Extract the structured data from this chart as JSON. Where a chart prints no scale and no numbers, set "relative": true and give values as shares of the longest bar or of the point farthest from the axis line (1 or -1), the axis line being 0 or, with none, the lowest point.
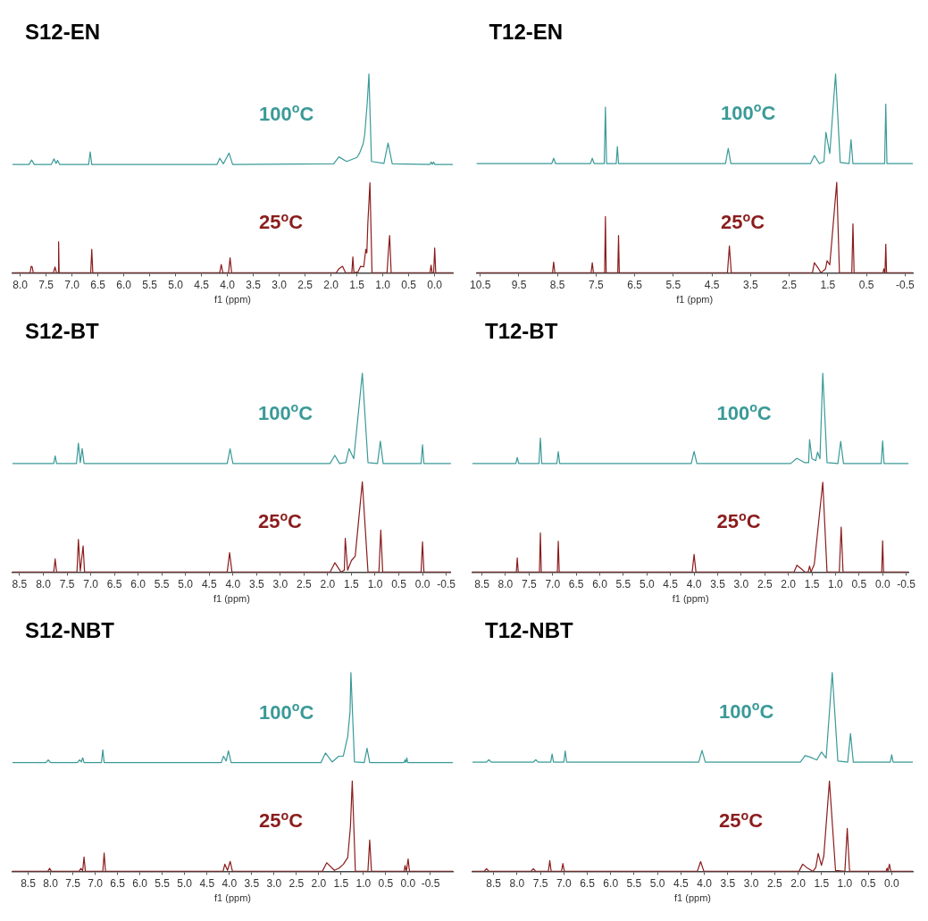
{
  "chart_data": [
    {
      "type": "line",
      "title": "S12-EN",
      "xlabel": "f1 (ppm)",
      "relative": true,
      "xlim": [
        8.15,
        -0.35
      ],
      "xticks": [
        {
          "value": 8,
          "label": "8.0"
        },
        7.5,
        {
          "value": 7,
          "label": "7.0"
        },
        6.5,
        {
          "value": 6,
          "label": "6.0"
        },
        5.5,
        {
          "value": 5,
          "label": "5.0"
        },
        4.5,
        {
          "value": 4,
          "label": "4.0"
        },
        3.5,
        {
          "value": 3,
          "label": "3.0"
        },
        2.5,
        {
          "value": 2,
          "label": "2.0"
        },
        1.5,
        {
          "value": 1,
          "label": "1.0"
        },
        0.5,
        {
          "value": 0,
          "label": "0.0"
        }
      ],
      "series": [
        {
          "name": "100$^{o}$C",
          "color": "#3a9a98",
          "x": [
            8.15,
            7.83,
            7.78,
            7.73,
            7.4,
            7.35,
            7.31,
            7.28,
            7.24,
            6.68,
            6.65,
            6.62,
            4.2,
            4.15,
            4.08,
            3.97,
            3.9,
            1.95,
            1.85,
            1.7,
            1.6,
            1.5,
            1.45,
            1.38,
            1.35,
            1.3,
            1.27,
            1.22,
            0.98,
            0.9,
            0.82,
            0.09,
            0.07,
            0.045,
            0.02,
            0.0,
            -0.35
          ],
          "values": [
            0.545,
            0.545,
            0.567,
            0.545,
            0.545,
            0.573,
            0.55,
            0.565,
            0.545,
            0.545,
            0.608,
            0.545,
            0.545,
            0.576,
            0.548,
            0.602,
            0.545,
            0.548,
            0.583,
            0.56,
            0.57,
            0.58,
            0.602,
            0.65,
            0.697,
            0.863,
            1,
            0.56,
            0.55,
            0.653,
            0.548,
            0.545,
            0.557,
            0.545,
            0.557,
            0.545,
            0.545
          ]
        },
        {
          "name": "25$^{o}$C",
          "color": "#8b1c1c",
          "x": [
            8.15,
            7.81,
            7.79,
            7.77,
            7.75,
            7.36,
            7.33,
            7.3,
            7.27,
            7.26,
            7.25,
            6.64,
            6.62,
            6.6,
            4.15,
            4.12,
            4.09,
            3.98,
            3.95,
            3.92,
            1.9,
            1.85,
            1.78,
            1.72,
            1.6,
            1.58,
            1.56,
            1.48,
            1.43,
            1.37,
            1.33,
            1.31,
            1.29,
            1.25,
            1.21,
            0.92,
            0.89,
            0.87,
            0.84,
            0.09,
            0.07,
            0.05,
            0.02,
            0.0,
            -0.02,
            -0.35
          ],
          "values": [
            0,
            0,
            0.033,
            0.03,
            0,
            0,
            0.029,
            0,
            0,
            0.156,
            0,
            0,
            0.118,
            0,
            0,
            0.042,
            0,
            0,
            0.076,
            0,
            0,
            0.02,
            0.033,
            0,
            0,
            0.08,
            0,
            0.005,
            0.033,
            0.03,
            0.118,
            0.1,
            0.252,
            0.453,
            0,
            0,
            0.122,
            0.188,
            0,
            0,
            0.038,
            0,
            0,
            0.125,
            0,
            0
          ]
        }
      ]
    },
    {
      "type": "line",
      "title": "T12-EN",
      "xlabel": "f1 (ppm)",
      "relative": true,
      "xlim": [
        10.6,
        -0.7
      ],
      "xticks": [
        10.5,
        9.5,
        8.5,
        7.5,
        6.5,
        5.5,
        4.5,
        3.5,
        2.5,
        1.5,
        0.5,
        -0.5
      ],
      "series": [
        {
          "name": "100$^{o}$C",
          "color": "#3a9a98",
          "x": [
            10.6,
            8.65,
            8.6,
            8.55,
            7.65,
            7.6,
            7.55,
            7.29,
            7.26,
            7.23,
            6.98,
            6.95,
            6.92,
            4.15,
            4.08,
            4.01,
            1.95,
            1.85,
            1.72,
            1.6,
            1.55,
            1.45,
            1.3,
            1.18,
            0.95,
            0.9,
            0.85,
            0.03,
            0.0,
            -0.03,
            -0.7
          ],
          "values": [
            0.549,
            0.549,
            0.576,
            0.549,
            0.549,
            0.576,
            0.549,
            0.549,
            0.834,
            0.549,
            0.549,
            0.635,
            0.549,
            0.549,
            0.626,
            0.549,
            0.549,
            0.59,
            0.549,
            0.56,
            0.707,
            0.6,
            1,
            0.555,
            0.549,
            0.67,
            0.549,
            0.549,
            0.848,
            0.549,
            0.549
          ]
        },
        {
          "name": "25$^{o}$C",
          "color": "#8b1c1c",
          "x": [
            10.6,
            8.63,
            8.6,
            8.57,
            7.63,
            7.6,
            7.57,
            7.28,
            7.26,
            7.24,
            6.94,
            6.92,
            6.9,
            4.1,
            4.05,
            4.0,
            1.9,
            1.85,
            1.75,
            1.68,
            1.56,
            1.52,
            1.45,
            1.27,
            1.2,
            0.88,
            0.85,
            0.82,
            0.07,
            0.05,
            0.02,
            0.0,
            -0.02,
            -0.7
          ],
          "values": [
            0,
            0,
            0.054,
            0,
            0,
            0.051,
            0,
            0,
            0.283,
            0,
            0,
            0.188,
            0,
            0,
            0.135,
            0,
            0,
            0.051,
            0.024,
            0,
            0.02,
            0.061,
            0.04,
            0.455,
            0,
            0,
            0.246,
            0,
            0,
            0.02,
            0,
            0.144,
            0,
            0
          ]
        }
      ]
    },
    {
      "type": "line",
      "title": "S12-BT",
      "xlabel": "f1 (ppm)",
      "relative": true,
      "xlim": [
        8.65,
        -0.6
      ],
      "xticks": [
        8.5,
        {
          "value": 8,
          "label": "8.0"
        },
        7.5,
        {
          "value": 7,
          "label": "7.0"
        },
        6.5,
        {
          "value": 6,
          "label": "6.0"
        },
        5.5,
        {
          "value": 5,
          "label": "5.0"
        },
        4.5,
        {
          "value": 4,
          "label": "4.0"
        },
        3.5,
        {
          "value": 3,
          "label": "3.0"
        },
        2.5,
        {
          "value": 2,
          "label": "2.0"
        },
        1.5,
        {
          "value": 1,
          "label": "1.0"
        },
        0.5,
        {
          "value": 0,
          "label": "0.0"
        },
        -0.5
      ],
      "series": [
        {
          "name": "100$^{o}$C",
          "color": "#3a9a98",
          "x": [
            8.65,
            7.78,
            7.75,
            7.72,
            7.3,
            7.26,
            7.22,
            7.18,
            7.14,
            4.12,
            4.06,
            4.0,
            1.95,
            1.85,
            1.75,
            1.62,
            1.55,
            1.45,
            1.27,
            1.15,
            0.95,
            0.89,
            0.83,
            0.03,
            0.0,
            -0.03,
            -0.6
          ],
          "values": [
            0.546,
            0.546,
            0.584,
            0.546,
            0.546,
            0.648,
            0.55,
            0.621,
            0.546,
            0.546,
            0.62,
            0.546,
            0.546,
            0.587,
            0.546,
            0.55,
            0.621,
            0.57,
            1,
            0.55,
            0.546,
            0.658,
            0.546,
            0.546,
            0.64,
            0.546,
            0.546
          ]
        },
        {
          "name": "25$^{o}$C",
          "color": "#8b1c1c",
          "x": [
            8.65,
            7.78,
            7.75,
            7.72,
            7.29,
            7.26,
            7.22,
            7.16,
            7.13,
            4.12,
            4.07,
            4.02,
            1.95,
            1.85,
            1.72,
            1.65,
            1.63,
            1.58,
            1.5,
            1.42,
            1.27,
            1.15,
            0.92,
            0.88,
            0.84,
            0.03,
            0.0,
            -0.03,
            -0.6
          ],
          "values": [
            0,
            0,
            0.066,
            0,
            0,
            0.164,
            0.005,
            0.132,
            0,
            0,
            0.098,
            0,
            0,
            0.047,
            0,
            0.01,
            0.17,
            0.01,
            0.058,
            0.08,
            0.454,
            0,
            0,
            0.211,
            0,
            0,
            0.152,
            0,
            0
          ]
        }
      ]
    },
    {
      "type": "line",
      "title": "T12-BT",
      "xlabel": "f1 (ppm)",
      "relative": true,
      "xlim": [
        8.7,
        -0.55
      ],
      "xticks": [
        8.5,
        {
          "value": 8,
          "label": "8.0"
        },
        7.5,
        {
          "value": 7,
          "label": "7.0"
        },
        6.5,
        {
          "value": 6,
          "label": "6.0"
        },
        5.5,
        {
          "value": 5,
          "label": "5.0"
        },
        4.5,
        {
          "value": 4,
          "label": "4.0"
        },
        3.5,
        {
          "value": 3,
          "label": "3.0"
        },
        2.5,
        {
          "value": 2,
          "label": "2.0"
        },
        1.5,
        {
          "value": 1,
          "label": "1.0"
        },
        0.5,
        {
          "value": 0,
          "label": "0.0"
        },
        -0.5
      ],
      "series": [
        {
          "name": "100$^{o}$C",
          "color": "#3a9a98",
          "x": [
            8.7,
            7.78,
            7.75,
            7.72,
            7.29,
            7.26,
            7.23,
            6.91,
            6.88,
            6.85,
            4.06,
            4.0,
            3.94,
            1.95,
            1.82,
            1.65,
            1.57,
            1.55,
            1.5,
            1.42,
            1.38,
            1.33,
            1.27,
            1.18,
            0.95,
            0.89,
            0.83,
            0.03,
            0.0,
            -0.03,
            -0.55
          ],
          "values": [
            0.546,
            0.546,
            0.576,
            0.546,
            0.546,
            0.674,
            0.546,
            0.546,
            0.606,
            0.546,
            0.546,
            0.607,
            0.546,
            0.546,
            0.572,
            0.55,
            0.55,
            0.666,
            0.57,
            0.56,
            0.603,
            0.57,
            1,
            0.55,
            0.546,
            0.657,
            0.546,
            0.546,
            0.66,
            0.546,
            0.546
          ]
        },
        {
          "name": "25$^{o}$C",
          "color": "#8b1c1c",
          "x": [
            8.7,
            7.77,
            7.75,
            7.73,
            7.28,
            7.26,
            7.24,
            6.9,
            6.88,
            6.86,
            4.04,
            4.0,
            3.96,
            1.88,
            1.82,
            1.72,
            1.65,
            1.58,
            1.55,
            1.52,
            1.45,
            1.27,
            1.18,
            0.92,
            0.88,
            0.84,
            0.02,
            0.0,
            -0.02,
            -0.55
          ],
          "values": [
            0,
            0,
            0.071,
            0,
            0,
            0.197,
            0,
            0,
            0.155,
            0,
            0,
            0.089,
            0,
            0,
            0.034,
            0.015,
            0,
            0,
            0.03,
            0,
            0.04,
            0.452,
            0,
            0,
            0.226,
            0,
            0,
            0.157,
            0,
            0
          ]
        }
      ]
    },
    {
      "type": "line",
      "title": "S12-NBT",
      "xlabel": "f1 (ppm)",
      "relative": true,
      "xlim": [
        8.85,
        -1.0
      ],
      "xticks": [
        8.5,
        {
          "value": 8,
          "label": "8.0"
        },
        7.5,
        {
          "value": 7,
          "label": "7.0"
        },
        6.5,
        {
          "value": 6,
          "label": "6.0"
        },
        5.5,
        {
          "value": 5,
          "label": "5.0"
        },
        4.5,
        {
          "value": 4,
          "label": "4.0"
        },
        3.5,
        {
          "value": 3,
          "label": "3.0"
        },
        2.5,
        {
          "value": 2,
          "label": "2.0"
        },
        1.5,
        {
          "value": 1,
          "label": "1.0"
        },
        0.5,
        {
          "value": 0,
          "label": "0.0"
        },
        -0.5
      ],
      "series": [
        {
          "name": "100$^{o}$C",
          "color": "#3a9a98",
          "x": [
            8.85,
            8.1,
            8.05,
            8.0,
            7.4,
            7.35,
            7.31,
            7.28,
            7.25,
            6.86,
            6.83,
            6.8,
            4.18,
            4.13,
            4.07,
            4.02,
            3.96,
            1.95,
            1.85,
            1.7,
            1.55,
            1.45,
            1.35,
            1.3,
            1.28,
            1.2,
            0.98,
            0.92,
            0.86,
            0.09,
            0.07,
            0.05,
            0.03,
            0.01,
            -1.0
          ],
          "values": [
            0.547,
            0.547,
            0.56,
            0.547,
            0.547,
            0.56,
            0.55,
            0.571,
            0.547,
            0.547,
            0.611,
            0.547,
            0.547,
            0.579,
            0.555,
            0.606,
            0.547,
            0.547,
            0.595,
            0.55,
            0.579,
            0.58,
            0.68,
            0.803,
            1,
            0.55,
            0.547,
            0.619,
            0.547,
            0.547,
            0.56,
            0.547,
            0.571,
            0.547,
            0.547
          ]
        },
        {
          "name": "25$^{o}$C",
          "color": "#8b1c1c",
          "x": [
            8.85,
            8.06,
            8.02,
            7.98,
            7.36,
            7.32,
            7.28,
            7.25,
            7.22,
            6.83,
            6.8,
            6.77,
            4.14,
            4.1,
            4.04,
            3.98,
            3.93,
            1.92,
            1.82,
            1.65,
            1.55,
            1.45,
            1.35,
            1.29,
            1.25,
            1.18,
            0.9,
            0.86,
            0.82,
            0.09,
            0.07,
            0.04,
            0.0,
            -0.03,
            -1.0
          ],
          "values": [
            0,
            0,
            0.015,
            0,
            0,
            0.015,
            0.003,
            0.072,
            0,
            0,
            0.092,
            0,
            0,
            0.036,
            0.005,
            0.05,
            0,
            0,
            0.043,
            0.005,
            0.015,
            0.035,
            0.07,
            0.227,
            0.454,
            0,
            0,
            0.158,
            0,
            0,
            0.029,
            0,
            0.062,
            0,
            0
          ]
        }
      ]
    },
    {
      "type": "line",
      "title": "T12-NBT",
      "xlabel": "f1 (ppm)",
      "relative": true,
      "xlim": [
        8.95,
        -0.45
      ],
      "xticks": [
        8.5,
        {
          "value": 8,
          "label": "8.0"
        },
        7.5,
        {
          "value": 7,
          "label": "7.0"
        },
        6.5,
        {
          "value": 6,
          "label": "6.0"
        },
        5.5,
        {
          "value": 5,
          "label": "5.0"
        },
        4.5,
        {
          "value": 4,
          "label": "4.0"
        },
        3.5,
        {
          "value": 3,
          "label": "3.0"
        },
        2.5,
        {
          "value": 2,
          "label": "2.0"
        },
        1.5,
        {
          "value": 1,
          "label": "1.0"
        },
        0.5,
        {
          "value": 0,
          "label": "0.0"
        }
      ],
      "series": [
        {
          "name": "100$^{o}$C",
          "color": "#3a9a98",
          "x": [
            8.95,
            8.65,
            8.6,
            8.55,
            7.65,
            7.6,
            7.55,
            7.28,
            7.25,
            7.22,
            7.0,
            6.97,
            6.94,
            4.12,
            4.05,
            3.98,
            1.95,
            1.85,
            1.75,
            1.6,
            1.5,
            1.4,
            1.27,
            1.15,
            0.94,
            0.88,
            0.82,
            0.03,
            0.0,
            -0.03,
            -0.45
          ],
          "values": [
            0.549,
            0.549,
            0.561,
            0.549,
            0.549,
            0.561,
            0.549,
            0.549,
            0.59,
            0.549,
            0.549,
            0.605,
            0.549,
            0.549,
            0.608,
            0.549,
            0.549,
            0.582,
            0.575,
            0.56,
            0.6,
            0.57,
            1,
            0.555,
            0.549,
            0.693,
            0.549,
            0.549,
            0.586,
            0.549,
            0.549
          ]
        },
        {
          "name": "25$^{o}$C",
          "color": "#8b1c1c",
          "x": [
            8.95,
            8.7,
            8.65,
            8.6,
            7.7,
            7.65,
            7.6,
            7.33,
            7.3,
            7.27,
            7.05,
            7.02,
            6.99,
            4.15,
            4.08,
            4.01,
            1.98,
            1.9,
            1.8,
            1.68,
            1.62,
            1.57,
            1.5,
            1.45,
            1.33,
            1.2,
            1.0,
            0.95,
            0.9,
            0.12,
            0.1,
            0.08,
            0.05,
            0.02,
            -0.45
          ],
          "values": [
            0,
            0,
            0.013,
            0,
            0,
            0.013,
            0,
            0,
            0.054,
            0,
            0,
            0.039,
            0,
            0,
            0.049,
            0,
            0,
            0.036,
            0.016,
            0,
            0.02,
            0.09,
            0.03,
            0.077,
            0.454,
            0.005,
            0,
            0.216,
            0,
            0,
            0.016,
            0,
            0.036,
            0,
            0
          ]
        }
      ]
    }
  ]
}
